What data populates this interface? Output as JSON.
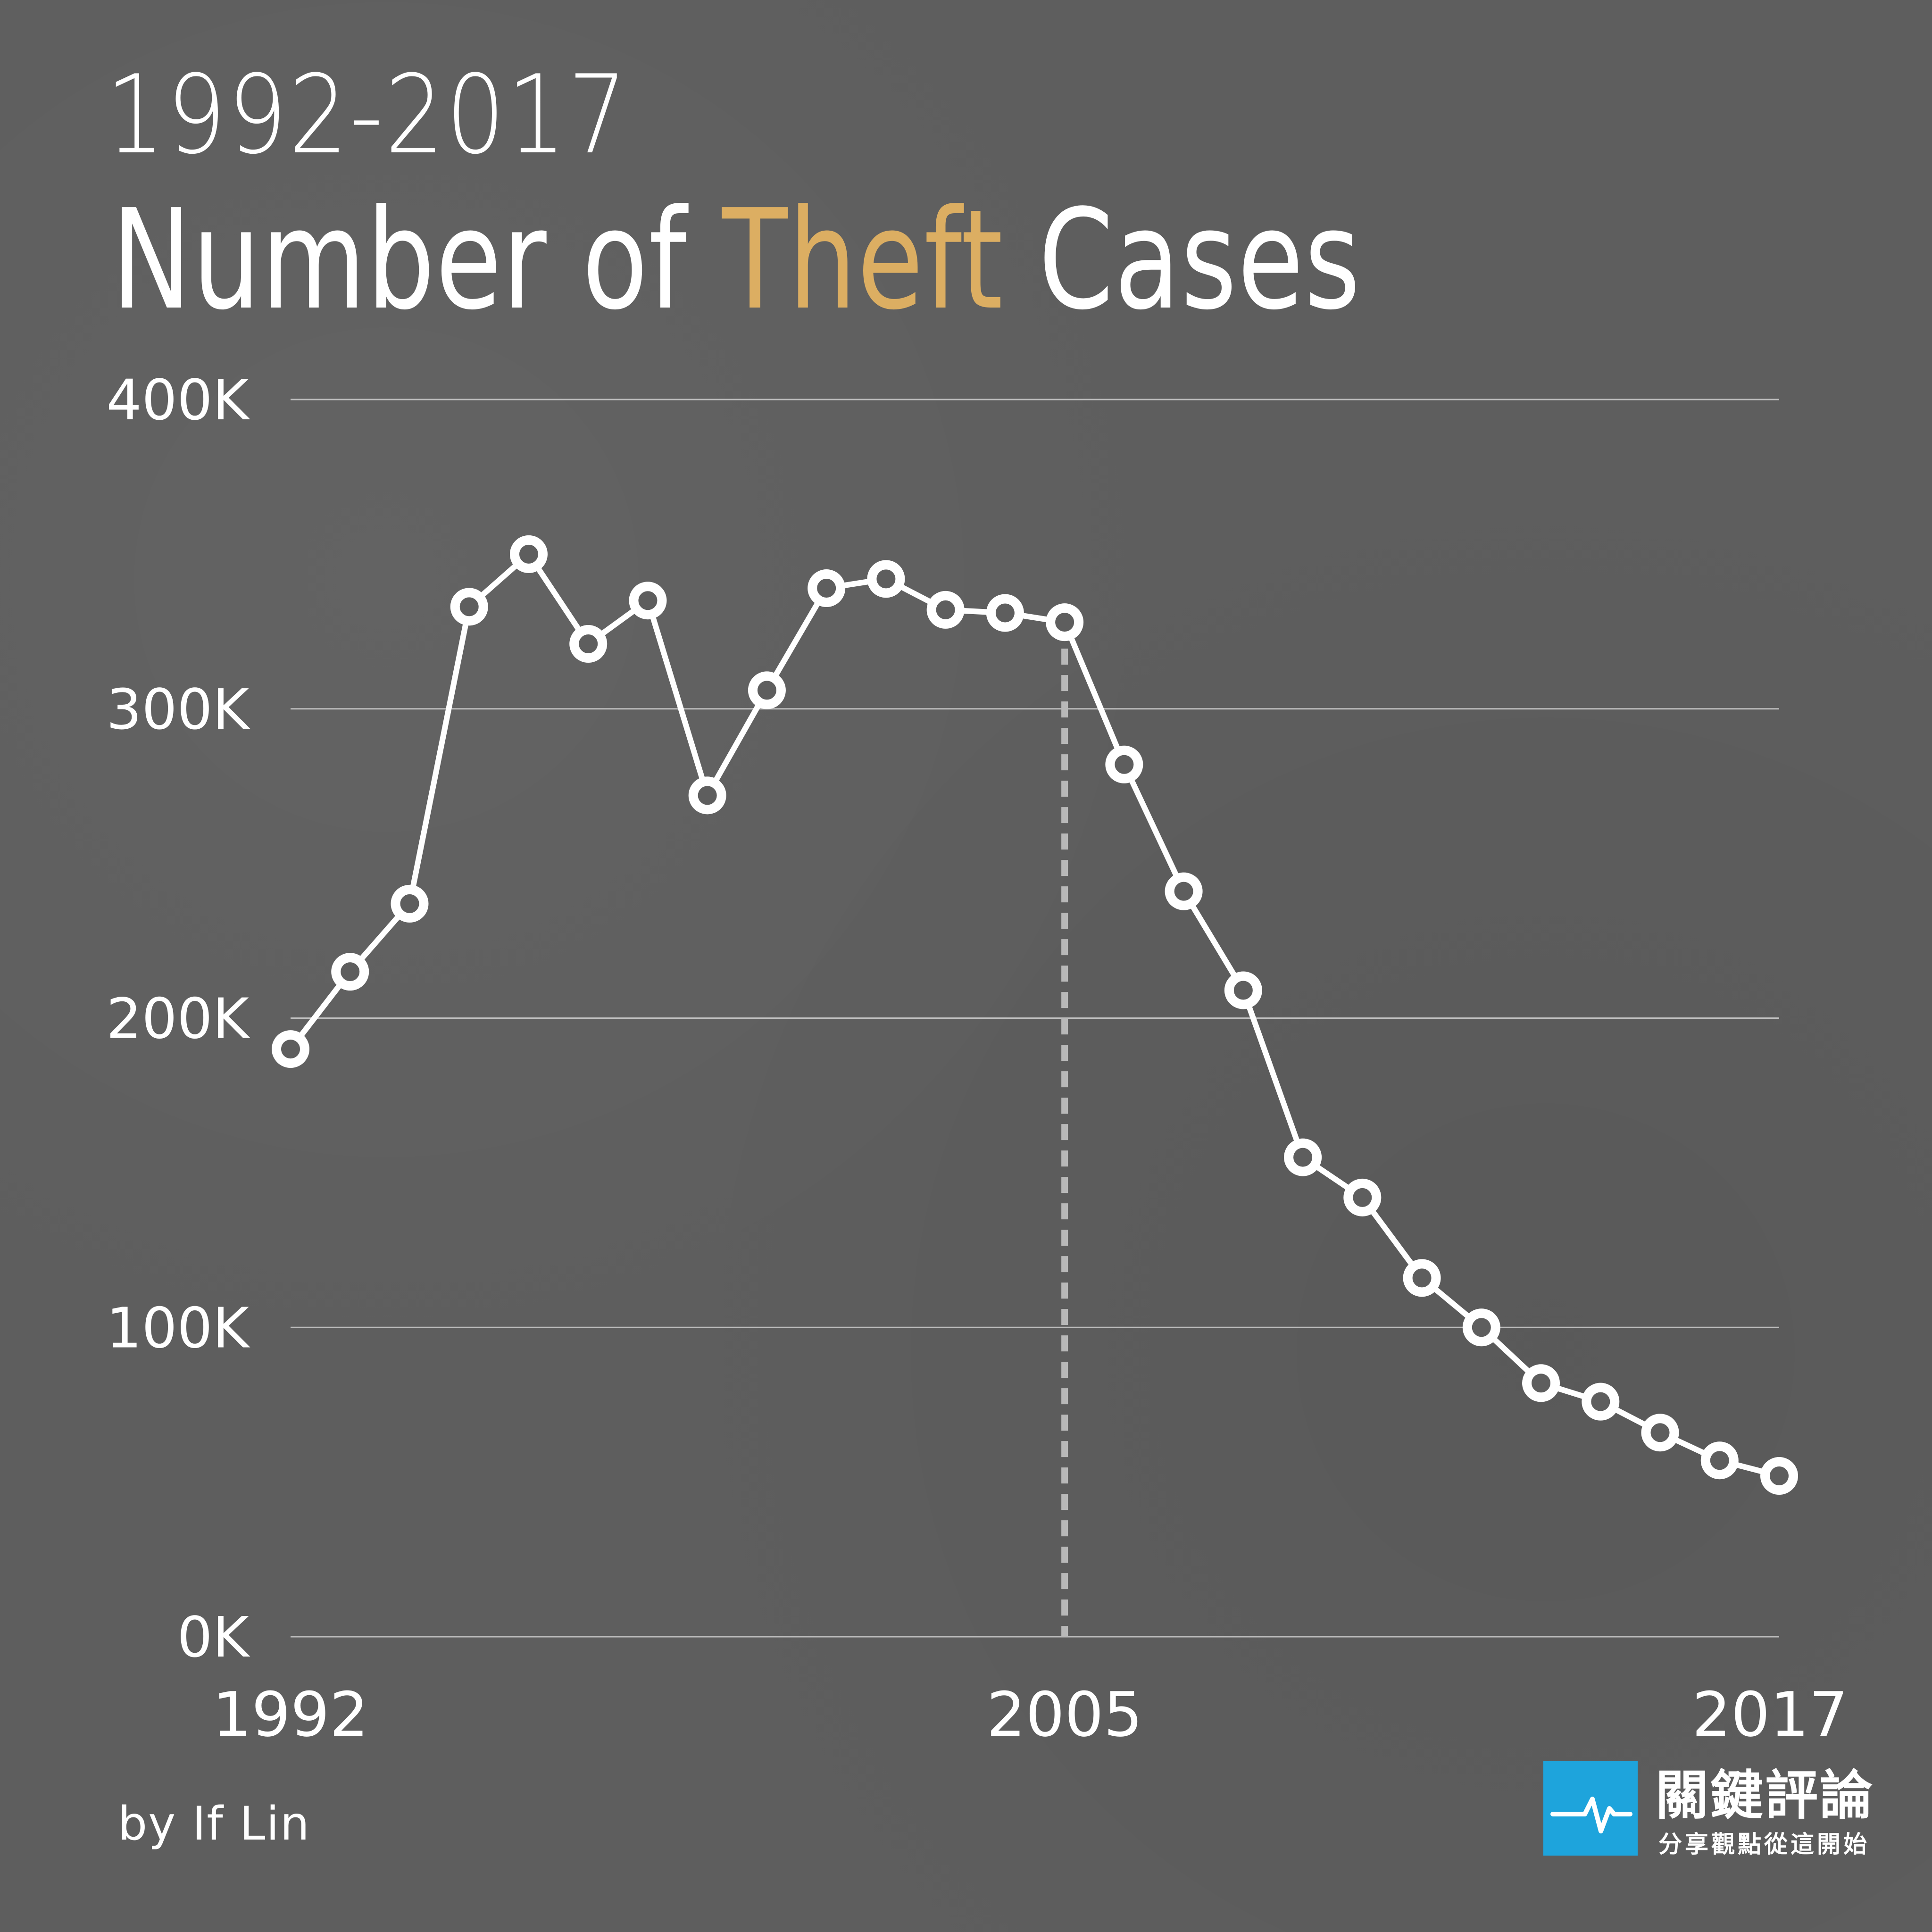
{
  "header": {
    "year_range": "1992-2017",
    "title_prefix": "Number of ",
    "title_accent": "Theft",
    "title_suffix": " Cases"
  },
  "footer": {
    "byline": "by If Lin",
    "brand_name": "關鍵評論",
    "brand_tagline": "分享觀點從這開始"
  },
  "colors": {
    "background": "#5e5e5e",
    "accent": "#dcae62",
    "line": "#ffffff",
    "logo": "#1ea4dc"
  },
  "chart_data": {
    "type": "line",
    "title": "1992-2017 Number of Theft Cases",
    "x": [
      1992,
      1993,
      1994,
      1995,
      1996,
      1997,
      1998,
      1999,
      2000,
      2001,
      2002,
      2003,
      2004,
      2005,
      2006,
      2007,
      2008,
      2009,
      2010,
      2011,
      2012,
      2013,
      2014,
      2015,
      2016,
      2017
    ],
    "series": [
      {
        "values": [
          190000,
          215000,
          237000,
          333000,
          350000,
          321000,
          335000,
          272000,
          306000,
          339000,
          342000,
          332000,
          331000,
          328000,
          282000,
          241000,
          209000,
          155000,
          142000,
          116000,
          100000,
          82000,
          76000,
          66000,
          57000,
          52000
        ]
      }
    ],
    "ylim": [
      0,
      400000
    ],
    "y_ticks": [
      {
        "value": 0,
        "label": "0K"
      },
      {
        "value": 100000,
        "label": "100K"
      },
      {
        "value": 200000,
        "label": "200K"
      },
      {
        "value": 300000,
        "label": "300K"
      },
      {
        "value": 400000,
        "label": "400K"
      }
    ],
    "x_ticks": [
      {
        "value": 1992,
        "label": "1992"
      },
      {
        "value": 2005,
        "label": "2005"
      },
      {
        "value": 2017,
        "label": "2017"
      }
    ],
    "marker_line_year": 2005,
    "grid": true
  }
}
